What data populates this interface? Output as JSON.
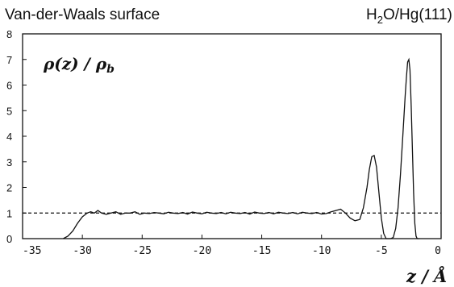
{
  "header": {
    "title_left": "Van-der-Waals surface",
    "title_right_main": "H",
    "title_right_sub": "2",
    "title_right_rest": "O/Hg(111)"
  },
  "chart_data": {
    "type": "line",
    "title": "Van-der-Waals surface",
    "subtitle": "H2O/Hg(111)",
    "ylabel": "ρ(z) / ρb",
    "xlabel": "z / Å",
    "xlim": [
      -35,
      0
    ],
    "ylim": [
      0,
      8
    ],
    "xticks": [
      "-35",
      "-30",
      "-25",
      "-20",
      "-15",
      "-10",
      "-5",
      "0"
    ],
    "yticks": [
      "0",
      "1",
      "2",
      "3",
      "4",
      "5",
      "6",
      "7",
      "8"
    ],
    "reference_line": {
      "y": 1,
      "style": "dashed"
    },
    "grid": false,
    "series": [
      {
        "x": [
          -31.6,
          -31.2,
          -30.8,
          -30.4,
          -30.0,
          -29.6,
          -29.3,
          -29.0,
          -28.7,
          -28.4,
          -28.0,
          -27.6,
          -27.2,
          -26.8,
          -26.4,
          -26.0,
          -25.6,
          -25.2,
          -24.8,
          -24.4,
          -24.0,
          -23.6,
          -23.2,
          -22.8,
          -22.4,
          -22.0,
          -21.6,
          -21.2,
          -20.8,
          -20.4,
          -20.0,
          -19.6,
          -19.2,
          -18.8,
          -18.4,
          -18.0,
          -17.6,
          -17.2,
          -16.8,
          -16.4,
          -16.0,
          -15.6,
          -15.2,
          -14.8,
          -14.4,
          -14.0,
          -13.6,
          -13.2,
          -12.8,
          -12.4,
          -12.0,
          -11.6,
          -11.2,
          -10.8,
          -10.4,
          -10.0,
          -9.6,
          -9.2,
          -8.8,
          -8.4,
          -8.0,
          -7.6,
          -7.2,
          -6.8,
          -6.5,
          -6.2,
          -6.0,
          -5.8,
          -5.6,
          -5.4,
          -5.2,
          -5.0,
          -4.8,
          -4.6,
          -4.4,
          -4.2,
          -4.0,
          -3.8,
          -3.6,
          -3.4,
          -3.2,
          -3.0,
          -2.9,
          -2.8,
          -2.7,
          -2.6,
          -2.5,
          -2.4,
          -2.3,
          -2.2,
          -2.1,
          -2.0,
          -1.9,
          -1.8
        ],
        "y": [
          0.0,
          0.1,
          0.3,
          0.6,
          0.85,
          1.0,
          1.05,
          1.0,
          1.1,
          1.0,
          0.95,
          1.0,
          1.05,
          0.95,
          1.0,
          1.0,
          1.05,
          0.95,
          1.0,
          0.98,
          1.02,
          1.0,
          0.97,
          1.03,
          1.0,
          0.98,
          1.02,
          0.96,
          1.04,
          1.0,
          0.97,
          1.03,
          1.0,
          0.98,
          1.02,
          0.97,
          1.03,
          1.0,
          0.98,
          1.02,
          0.96,
          1.04,
          1.0,
          0.98,
          1.02,
          0.97,
          1.03,
          1.0,
          0.98,
          1.02,
          0.97,
          1.03,
          1.0,
          0.98,
          1.02,
          0.96,
          0.98,
          1.05,
          1.1,
          1.15,
          1.0,
          0.8,
          0.7,
          0.75,
          1.2,
          2.0,
          2.7,
          3.2,
          3.25,
          2.8,
          1.8,
          0.8,
          0.2,
          0.0,
          0.0,
          0.0,
          0.05,
          0.4,
          1.2,
          2.5,
          4.0,
          5.6,
          6.3,
          6.9,
          7.0,
          6.6,
          5.2,
          3.5,
          1.8,
          0.6,
          0.1,
          0.0,
          0.0,
          0.0
        ]
      }
    ]
  }
}
